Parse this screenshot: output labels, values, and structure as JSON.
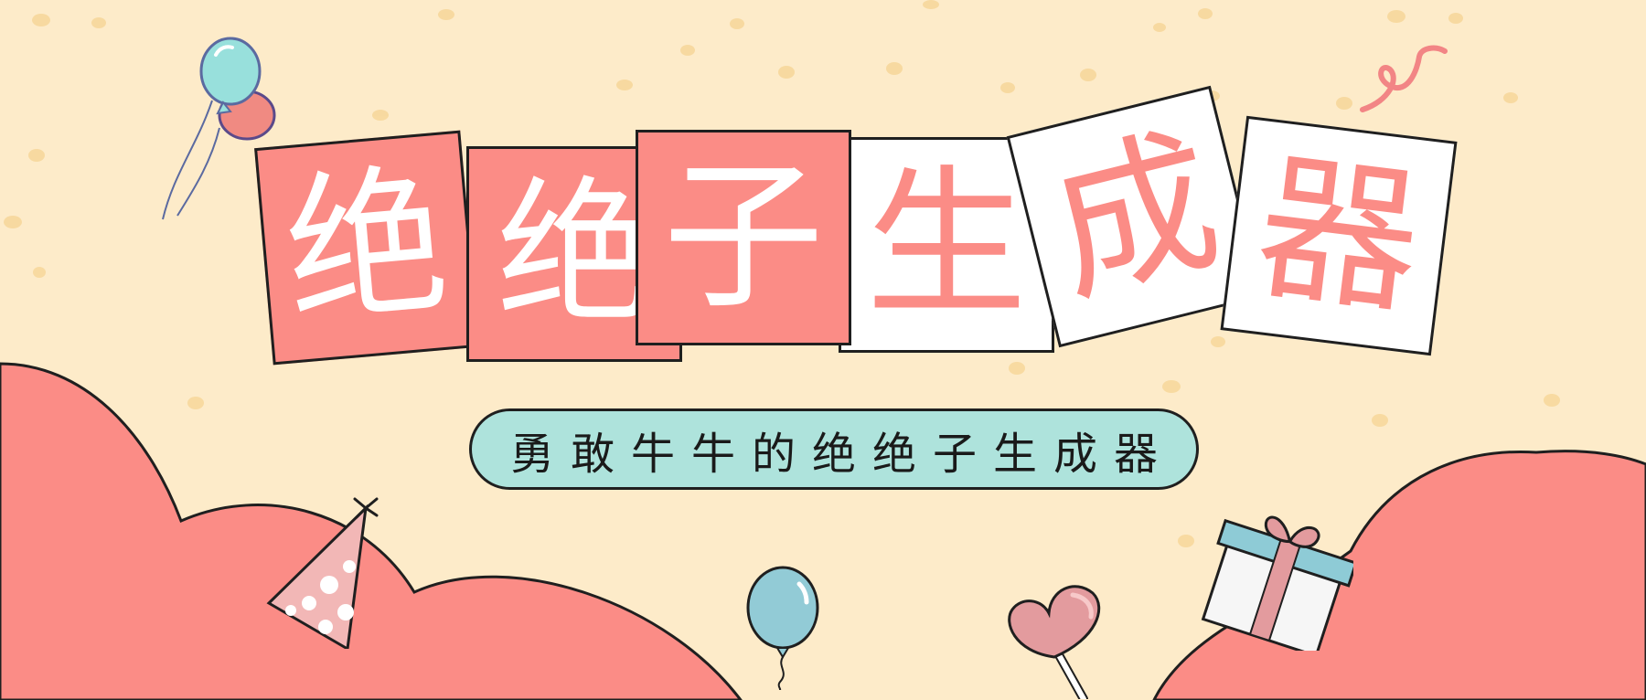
{
  "banner": {
    "title_chars": [
      "绝",
      "绝",
      "子",
      "生",
      "成",
      "器"
    ],
    "subtitle": "勇敢牛牛的绝绝子生成器"
  },
  "icons": {
    "top_left": "balloon-pair-icon",
    "bottom_left": "party-hat-icon",
    "bottom_center": "balloon-icon",
    "bottom_right_center": "heart-lollipop-icon",
    "bottom_right": "gift-box-icon",
    "top_right": "confetti-ribbon-icon"
  },
  "colors": {
    "background": "#fdebc9",
    "accent_pink": "#fb8c86",
    "mint": "#aee3dc",
    "outline": "#1f1f1f",
    "white": "#ffffff"
  }
}
